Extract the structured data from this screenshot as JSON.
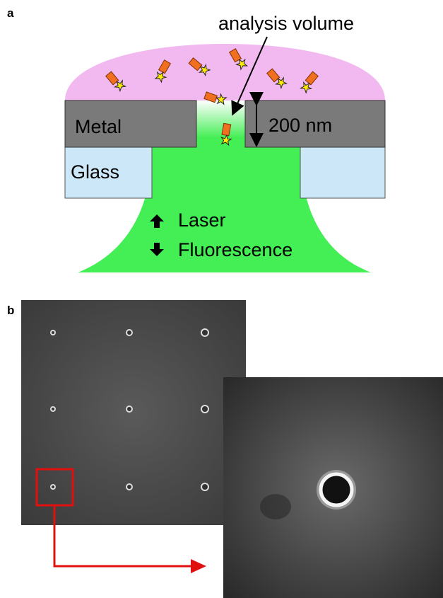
{
  "panel_a": {
    "label": "a",
    "annotation": "analysis volume",
    "metal": "Metal",
    "thickness": "200 nm",
    "glass": "Glass",
    "laser": "Laser",
    "fluorescence": "Fluorescence"
  },
  "panel_b": {
    "label": "b"
  }
}
